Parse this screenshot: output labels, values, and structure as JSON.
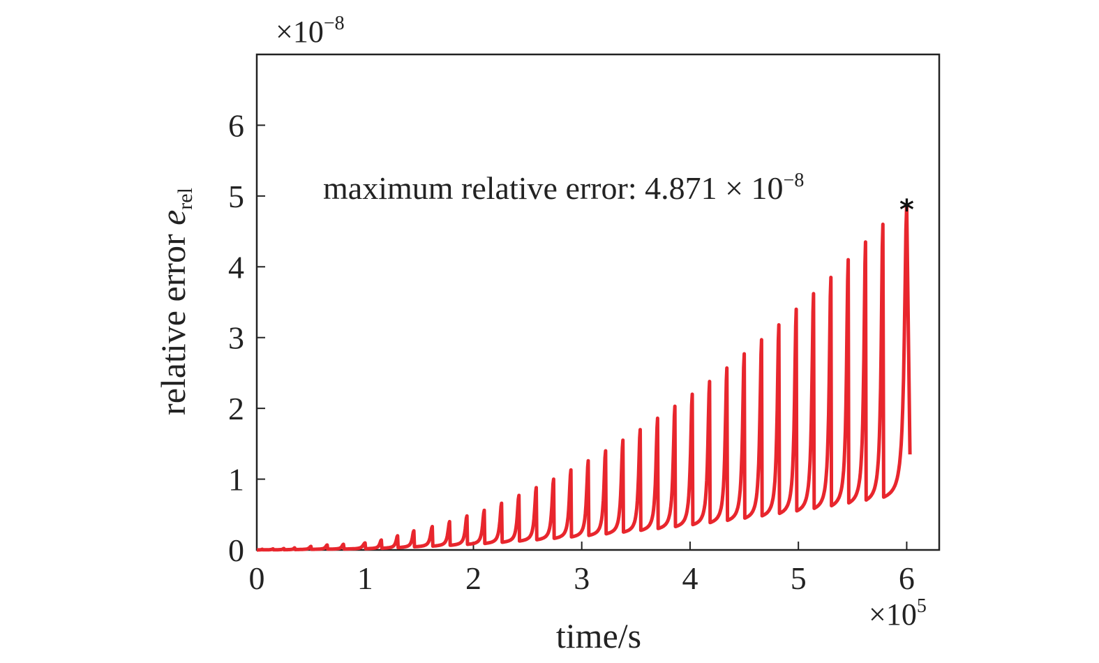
{
  "chart_data": {
    "type": "line",
    "xlabel": "time/s",
    "ylabel": {
      "main": "relative error ",
      "symbol": "e",
      "subscript": "rel"
    },
    "x_multiplier": {
      "base": "×10",
      "exponent": "5"
    },
    "y_multiplier": {
      "base": "×10",
      "exponent": "−8"
    },
    "xlim": [
      0,
      630000
    ],
    "ylim": [
      0,
      7
    ],
    "x_ticks": [
      0,
      100000,
      200000,
      300000,
      400000,
      500000,
      600000
    ],
    "x_tick_labels": [
      "0",
      "1",
      "2",
      "3",
      "4",
      "5",
      "6"
    ],
    "y_ticks": [
      0,
      1,
      2,
      3,
      4,
      5,
      6
    ],
    "y_tick_labels": [
      "0",
      "1",
      "2",
      "3",
      "4",
      "5",
      "6"
    ],
    "grid": false,
    "line_color": "#e8262d",
    "marker_color": "#111111",
    "series": [
      {
        "peaks_x": [
          0,
          5000,
          15000,
          25000,
          35000,
          50000,
          65000,
          80000,
          100000,
          115000,
          130000,
          145000,
          162000,
          178000,
          194000,
          210000,
          226000,
          242000,
          258000,
          274000,
          290000,
          306000,
          322000,
          338000,
          354000,
          370000,
          386000,
          402000,
          418000,
          434000,
          450000,
          466000,
          482000,
          498000,
          514000,
          530000,
          546000,
          562000,
          578000,
          600000
        ],
        "peaks_y": [
          0,
          0.01,
          0.015,
          0.02,
          0.03,
          0.05,
          0.07,
          0.08,
          0.1,
          0.14,
          0.2,
          0.27,
          0.33,
          0.4,
          0.48,
          0.56,
          0.66,
          0.77,
          0.88,
          1.0,
          1.13,
          1.26,
          1.4,
          1.55,
          1.7,
          1.86,
          2.03,
          2.2,
          2.38,
          2.57,
          2.77,
          2.97,
          3.18,
          3.4,
          3.62,
          3.85,
          4.1,
          4.35,
          4.6,
          4.871
        ],
        "final_x": 603000,
        "final_y": 1.35
      }
    ],
    "annotation": {
      "text": "maximum relative error: 4.871 × 10",
      "exponent": "−8",
      "point_x": 600000,
      "point_y": 4.871,
      "marker": "*"
    }
  }
}
